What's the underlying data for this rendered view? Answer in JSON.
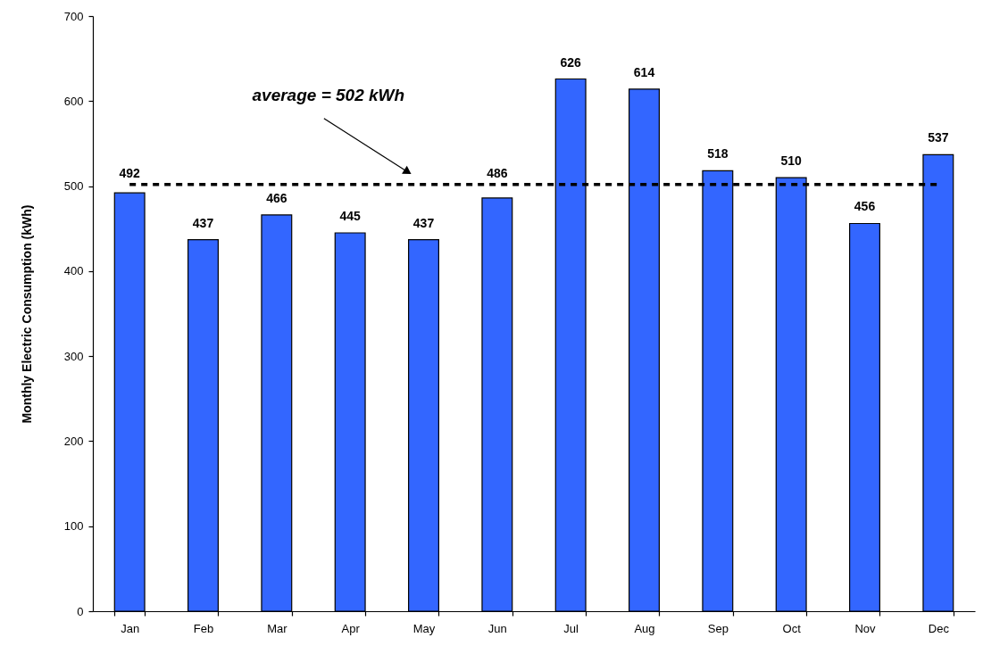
{
  "chart_data": {
    "type": "bar",
    "ylabel": "Monthly Electric Consumption (kWh)",
    "categories": [
      "Jan",
      "Feb",
      "Mar",
      "Apr",
      "May",
      "Jun",
      "Jul",
      "Aug",
      "Sep",
      "Oct",
      "Nov",
      "Dec"
    ],
    "values": [
      492,
      437,
      466,
      445,
      437,
      486,
      626,
      614,
      518,
      510,
      456,
      537
    ],
    "color": "#3366ff",
    "ylim": [
      0,
      700
    ],
    "yticks": [
      0,
      100,
      200,
      300,
      400,
      500,
      600,
      700
    ],
    "data_labels": true,
    "ref_lines": [
      {
        "axis": "y",
        "value": 502,
        "label": "average = 502 kWh",
        "color": "#000000",
        "line_style": "dashed"
      }
    ]
  }
}
